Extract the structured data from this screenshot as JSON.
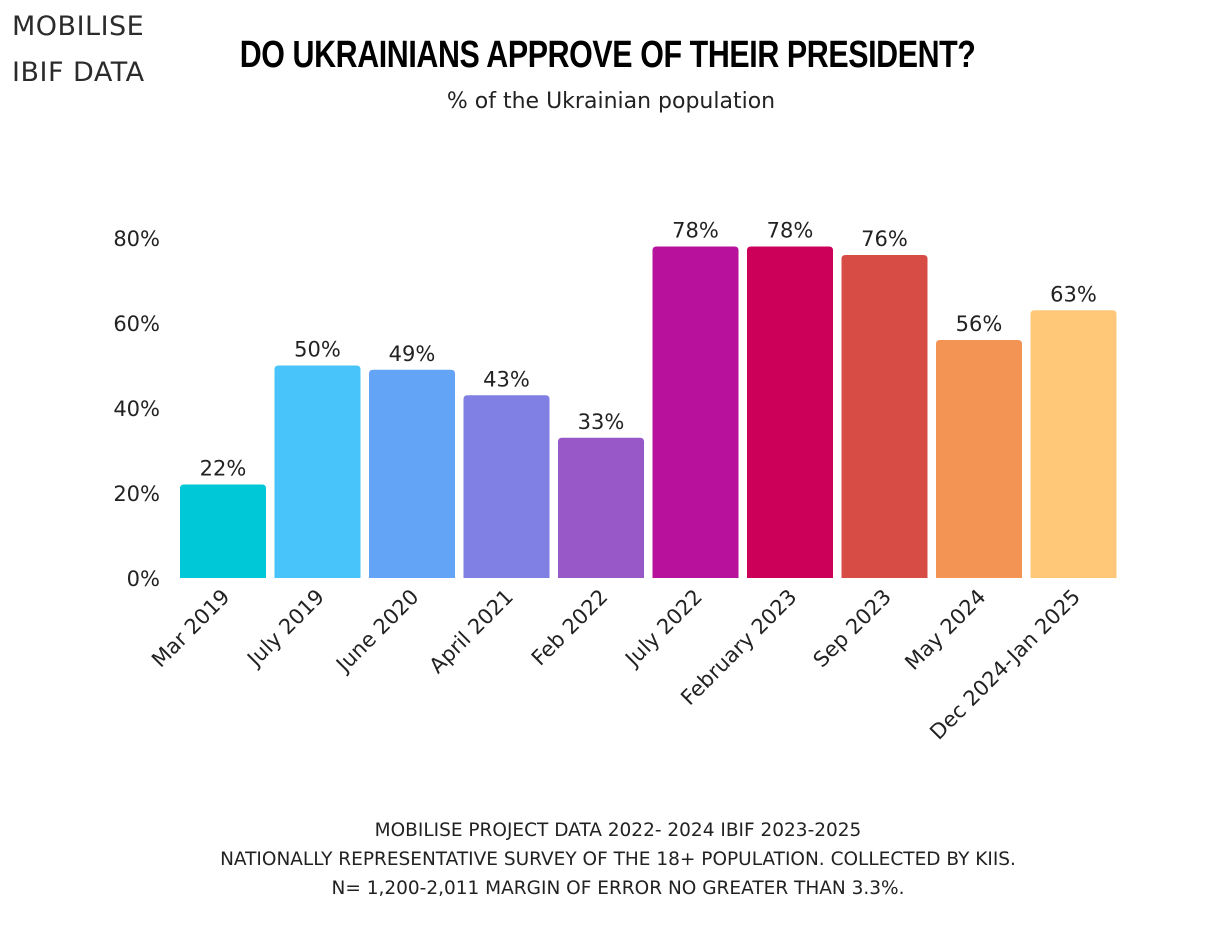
{
  "brand": {
    "line1": "MOBILISE",
    "line2": "IBIF DATA"
  },
  "chart_data": {
    "type": "bar",
    "title": "DO UKRAINIANS APPROVE OF THEIR PRESIDENT?",
    "subtitle": "% of the Ukrainian population",
    "categories": [
      "Mar 2019",
      "July 2019",
      "June 2020",
      "April 2021",
      "Feb 2022",
      "July 2022",
      "February 2023",
      "Sep 2023",
      "May 2024",
      "Dec 2024-Jan 2025"
    ],
    "values": [
      22,
      50,
      49,
      43,
      33,
      78,
      78,
      76,
      56,
      63
    ],
    "data_labels": [
      "22%",
      "50%",
      "49%",
      "43%",
      "33%",
      "78%",
      "78%",
      "76%",
      "56%",
      "63%"
    ],
    "colors": [
      "#00c8d6",
      "#48c4fa",
      "#64a4f6",
      "#8080e4",
      "#9858c8",
      "#b8129c",
      "#cc0058",
      "#d84c46",
      "#f49454",
      "#fec878"
    ],
    "y_ticks": [
      "0%",
      "20%",
      "40%",
      "60%",
      "80%"
    ],
    "y_tick_values": [
      0,
      20,
      40,
      60,
      80
    ],
    "ylim": [
      0,
      80
    ],
    "grid": false,
    "legend": "none"
  },
  "footnote": {
    "line1": "MOBILISE PROJECT DATA 2022- 2024 IBIF 2023-2025",
    "line2": "NATIONALLY REPRESENTATIVE SURVEY  OF THE 18+ POPULATION. COLLECTED BY KIIS.",
    "line3": "N= 1,200-2,011 MARGIN OF ERROR NO GREATER THAN 3.3%."
  }
}
